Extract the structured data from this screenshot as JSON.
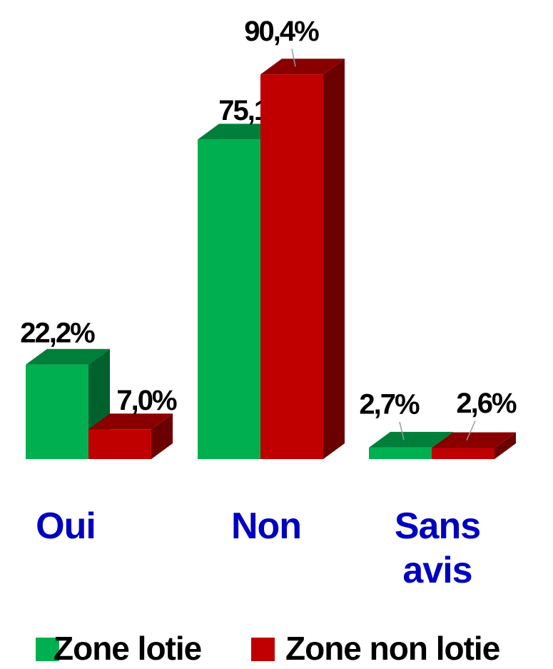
{
  "chart_data": {
    "type": "bar3d",
    "categories": [
      "Oui",
      "Non",
      "Sans avis"
    ],
    "series": [
      {
        "name": "Zone lotie",
        "color": "#00b050",
        "values": [
          22.2,
          75.1,
          2.7
        ],
        "value_labels": [
          "22,2%",
          "75,1%",
          "2,7%"
        ]
      },
      {
        "name": "Zone non lotie",
        "color": "#c00000",
        "values": [
          7.0,
          90.4,
          2.6
        ],
        "value_labels": [
          "7,0%",
          "90,4%",
          "2,6%"
        ]
      }
    ],
    "category_color": "#0000c0",
    "legend": "bottom"
  }
}
